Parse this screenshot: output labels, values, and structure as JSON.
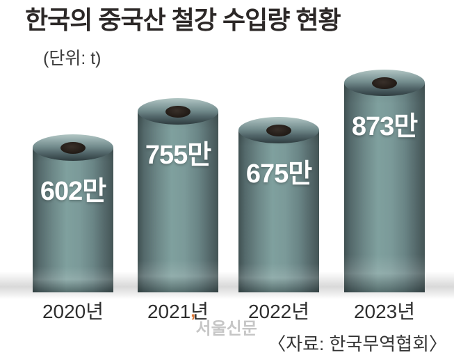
{
  "header": {
    "title": "한국의 중국산 철강 수입량 현황",
    "unit_label": "(단위: t)"
  },
  "footer": {
    "source": "〈자료: 한국무역협회〉",
    "watermark": "서울신문",
    "watermark_mark": "’"
  },
  "chart_data": {
    "type": "bar",
    "title": "한국의 중국산 철강 수입량 현황",
    "unit": "t",
    "categories": [
      "2020년",
      "2021년",
      "2022년",
      "2023년"
    ],
    "values": [
      6020000,
      7550000,
      6750000,
      8730000
    ],
    "value_labels": [
      "602만",
      "755만",
      "675만",
      "873만"
    ],
    "source": "한국무역협회",
    "bar_style": "3d-cylinder-steel-coil",
    "legend": "none",
    "colors": {
      "cylinder_light": "#7fa09e",
      "cylinder_dark": "#3f5051",
      "cap_light": "#b2c6c3",
      "hole": "#241d18",
      "value_text": "#ffffff",
      "axis_text": "#2e2e2e",
      "watermark_accent": "#e07b39",
      "watermark_text": "#c6c6c6"
    }
  }
}
